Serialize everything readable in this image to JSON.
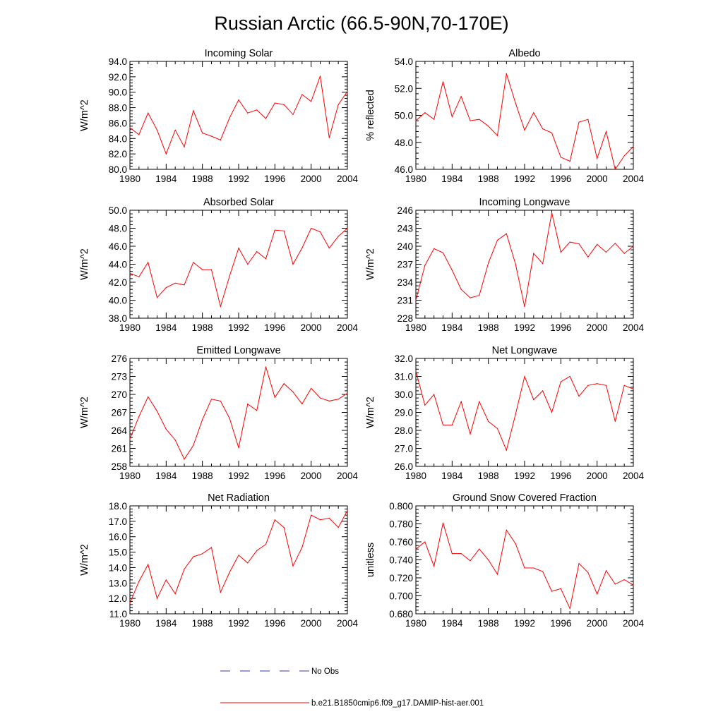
{
  "title": "Russian Arctic (66.5-90N,70-170E)",
  "legend": {
    "placement": "bottom-center",
    "entries": [
      {
        "label": "No Obs",
        "color": "#3a3aa8",
        "dash": "dashed"
      },
      {
        "label": "b.e21.B1850cmip6.f09_g17.DAMIP-hist-aer.001",
        "color": "#ff0000",
        "dash": "solid"
      }
    ]
  },
  "chart_data": [
    {
      "type": "line",
      "title": "Incoming Solar",
      "ylabel": "W/m^2",
      "xlim": [
        1980,
        2004
      ],
      "ylim": [
        80,
        94
      ],
      "xticks": [
        "1980",
        "1984",
        "1988",
        "1992",
        "1996",
        "2000",
        "2004"
      ],
      "yticks": [
        "80.0",
        "82.0",
        "84.0",
        "86.0",
        "88.0",
        "90.0",
        "92.0",
        "94.0"
      ],
      "x": [
        1980,
        1981,
        1982,
        1983,
        1984,
        1985,
        1986,
        1987,
        1988,
        1989,
        1990,
        1991,
        1992,
        1993,
        1994,
        1995,
        1996,
        1997,
        1998,
        1999,
        2000,
        2001,
        2002,
        2003,
        2004
      ],
      "series": [
        {
          "color": "#ff0000",
          "values": [
            85.4,
            84.5,
            87.3,
            85.1,
            82.0,
            85.1,
            82.9,
            87.6,
            84.7,
            84.3,
            83.8,
            86.7,
            89.0,
            87.3,
            87.7,
            86.6,
            88.6,
            88.4,
            87.1,
            89.7,
            88.8,
            92.1,
            84.1,
            88.4,
            90.1
          ]
        }
      ]
    },
    {
      "type": "line",
      "title": "Albedo",
      "ylabel": "% reflected",
      "xlim": [
        1980,
        2004
      ],
      "ylim": [
        46,
        54
      ],
      "xticks": [
        "1980",
        "1984",
        "1988",
        "1992",
        "1996",
        "2000",
        "2004"
      ],
      "yticks": [
        "46.0",
        "48.0",
        "50.0",
        "52.0",
        "54.0"
      ],
      "x": [
        1980,
        1981,
        1982,
        1983,
        1984,
        1985,
        1986,
        1987,
        1988,
        1989,
        1990,
        1991,
        1992,
        1993,
        1994,
        1995,
        1996,
        1997,
        1998,
        1999,
        2000,
        2001,
        2002,
        2003,
        2004
      ],
      "series": [
        {
          "color": "#ff0000",
          "values": [
            49.6,
            50.2,
            49.7,
            52.5,
            49.9,
            51.4,
            49.6,
            49.7,
            49.2,
            48.5,
            53.1,
            50.9,
            48.9,
            50.2,
            49.0,
            48.7,
            46.9,
            46.6,
            49.5,
            49.7,
            46.8,
            48.8,
            46.0,
            47.0,
            47.7
          ]
        }
      ]
    },
    {
      "type": "line",
      "title": "Absorbed Solar",
      "ylabel": "W/m^2",
      "xlim": [
        1980,
        2004
      ],
      "ylim": [
        38,
        50
      ],
      "xticks": [
        "1980",
        "1984",
        "1988",
        "1992",
        "1996",
        "2000",
        "2004"
      ],
      "yticks": [
        "38.0",
        "40.0",
        "42.0",
        "44.0",
        "46.0",
        "48.0",
        "50.0"
      ],
      "x": [
        1980,
        1981,
        1982,
        1983,
        1984,
        1985,
        1986,
        1987,
        1988,
        1989,
        1990,
        1991,
        1992,
        1993,
        1994,
        1995,
        1996,
        1997,
        1998,
        1999,
        2000,
        2001,
        2002,
        2003,
        2004
      ],
      "series": [
        {
          "color": "#ff0000",
          "values": [
            43.0,
            42.6,
            44.2,
            40.3,
            41.4,
            41.9,
            41.7,
            44.2,
            43.4,
            43.4,
            39.3,
            42.7,
            45.8,
            44.0,
            45.4,
            44.6,
            47.8,
            47.7,
            44.0,
            45.8,
            48.0,
            47.6,
            45.8,
            47.1,
            48.0
          ]
        }
      ]
    },
    {
      "type": "line",
      "title": "Incoming Longwave",
      "ylabel": "W/m^2",
      "xlim": [
        1980,
        2004
      ],
      "ylim": [
        228,
        246
      ],
      "xticks": [
        "1980",
        "1984",
        "1988",
        "1992",
        "1996",
        "2000",
        "2004"
      ],
      "yticks": [
        "228",
        "231",
        "234",
        "237",
        "240",
        "243",
        "246"
      ],
      "x": [
        1980,
        1981,
        1982,
        1983,
        1984,
        1985,
        1986,
        1987,
        1988,
        1989,
        1990,
        1991,
        1992,
        1993,
        1994,
        1995,
        1996,
        1997,
        1998,
        1999,
        2000,
        2001,
        2002,
        2003,
        2004
      ],
      "series": [
        {
          "color": "#ff0000",
          "values": [
            231.0,
            236.8,
            239.6,
            238.9,
            236.0,
            232.8,
            231.4,
            231.8,
            237.2,
            241.0,
            242.1,
            237.0,
            229.9,
            238.8,
            237.1,
            245.6,
            239.0,
            240.7,
            240.4,
            238.2,
            240.3,
            239.0,
            240.5,
            238.8,
            240.0
          ]
        }
      ]
    },
    {
      "type": "line",
      "title": "Emitted Longwave",
      "ylabel": "W/m^2",
      "xlim": [
        1980,
        2004
      ],
      "ylim": [
        258,
        276
      ],
      "xticks": [
        "1980",
        "1984",
        "1988",
        "1992",
        "1996",
        "2000",
        "2004"
      ],
      "yticks": [
        "258",
        "261",
        "264",
        "267",
        "270",
        "273",
        "276"
      ],
      "x": [
        1980,
        1981,
        1982,
        1983,
        1984,
        1985,
        1986,
        1987,
        1988,
        1989,
        1990,
        1991,
        1992,
        1993,
        1994,
        1995,
        1996,
        1997,
        1998,
        1999,
        2000,
        2001,
        2002,
        2003,
        2004
      ],
      "series": [
        {
          "color": "#ff0000",
          "values": [
            262.6,
            266.3,
            269.6,
            267.2,
            264.2,
            262.4,
            259.2,
            261.5,
            265.8,
            269.2,
            268.9,
            266.0,
            261.1,
            268.4,
            267.3,
            274.6,
            269.5,
            271.8,
            270.4,
            268.4,
            271.0,
            269.4,
            268.9,
            269.2,
            270.2
          ]
        }
      ]
    },
    {
      "type": "line",
      "title": "Net Longwave",
      "ylabel": "W/m^2",
      "xlim": [
        1980,
        2004
      ],
      "ylim": [
        26,
        32
      ],
      "xticks": [
        "1980",
        "1984",
        "1988",
        "1992",
        "1996",
        "2000",
        "2004"
      ],
      "yticks": [
        "26.0",
        "27.0",
        "28.0",
        "29.0",
        "30.0",
        "31.0",
        "32.0"
      ],
      "x": [
        1980,
        1981,
        1982,
        1983,
        1984,
        1985,
        1986,
        1987,
        1988,
        1989,
        1990,
        1991,
        1992,
        1993,
        1994,
        1995,
        1996,
        1997,
        1998,
        1999,
        2000,
        2001,
        2002,
        2003,
        2004
      ],
      "series": [
        {
          "color": "#ff0000",
          "values": [
            31.3,
            29.4,
            30.0,
            28.3,
            28.3,
            29.6,
            27.8,
            29.6,
            28.5,
            28.1,
            26.9,
            28.9,
            31.0,
            29.7,
            30.2,
            29.0,
            30.7,
            31.0,
            29.9,
            30.5,
            30.6,
            30.5,
            28.5,
            30.5,
            30.3
          ]
        }
      ]
    },
    {
      "type": "line",
      "title": "Net Radiation",
      "ylabel": "W/m^2",
      "xlim": [
        1980,
        2004
      ],
      "ylim": [
        11,
        18
      ],
      "xticks": [
        "1980",
        "1984",
        "1988",
        "1992",
        "1996",
        "2000",
        "2004"
      ],
      "yticks": [
        "11.0",
        "12.0",
        "13.0",
        "14.0",
        "15.0",
        "16.0",
        "17.0",
        "18.0"
      ],
      "x": [
        1980,
        1981,
        1982,
        1983,
        1984,
        1985,
        1986,
        1987,
        1988,
        1989,
        1990,
        1991,
        1992,
        1993,
        1994,
        1995,
        1996,
        1997,
        1998,
        1999,
        2000,
        2001,
        2002,
        2003,
        2004
      ],
      "series": [
        {
          "color": "#ff0000",
          "values": [
            11.7,
            13.1,
            14.2,
            12.0,
            13.2,
            12.3,
            13.9,
            14.7,
            14.9,
            15.3,
            12.4,
            13.7,
            14.8,
            14.3,
            15.1,
            15.5,
            17.1,
            16.6,
            14.1,
            15.3,
            17.4,
            17.1,
            17.2,
            16.6,
            17.7
          ]
        }
      ]
    },
    {
      "type": "line",
      "title": "Ground Snow Covered Fraction",
      "ylabel": "unitless",
      "xlim": [
        1980,
        2004
      ],
      "ylim": [
        0.68,
        0.8
      ],
      "xticks": [
        "1980",
        "1984",
        "1988",
        "1992",
        "1996",
        "2000",
        "2004"
      ],
      "yticks": [
        "0.680",
        "0.700",
        "0.720",
        "0.740",
        "0.760",
        "0.780",
        "0.800"
      ],
      "x": [
        1980,
        1981,
        1982,
        1983,
        1984,
        1985,
        1986,
        1987,
        1988,
        1989,
        1990,
        1991,
        1992,
        1993,
        1994,
        1995,
        1996,
        1997,
        1998,
        1999,
        2000,
        2001,
        2002,
        2003,
        2004
      ],
      "series": [
        {
          "color": "#ff0000",
          "values": [
            0.752,
            0.76,
            0.733,
            0.781,
            0.747,
            0.747,
            0.739,
            0.752,
            0.74,
            0.724,
            0.773,
            0.758,
            0.731,
            0.731,
            0.727,
            0.705,
            0.708,
            0.686,
            0.736,
            0.726,
            0.702,
            0.728,
            0.713,
            0.718,
            0.712
          ]
        }
      ]
    }
  ]
}
